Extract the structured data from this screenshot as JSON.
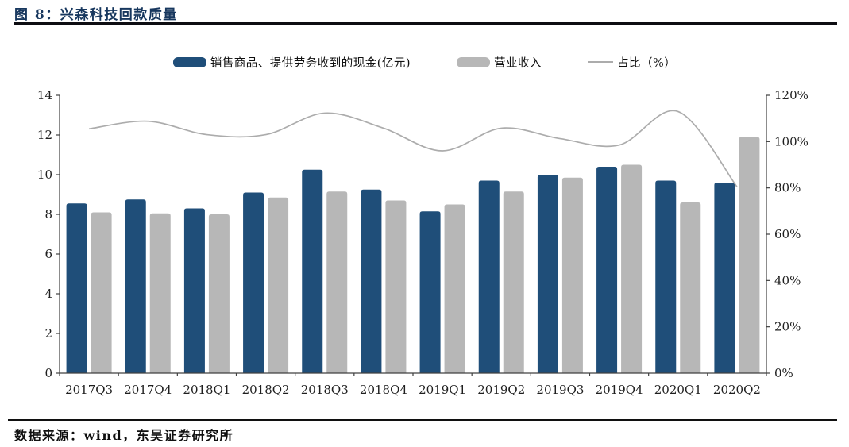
{
  "page": {
    "title": "图 8：兴森科技回款质量",
    "source_note": "数据来源：wind，东吴证券研究所"
  },
  "legend": [
    {
      "label": "销售商品、提供劳务收到的现金(亿元)",
      "swatch": "bar"
    },
    {
      "label": "营业收入",
      "swatch": "bar"
    },
    {
      "label": "占比（%）",
      "swatch": "line"
    }
  ],
  "chart_data": {
    "type": "bar",
    "title": "图 8：兴森科技回款质量",
    "categories": [
      "2017Q3",
      "2017Q4",
      "2018Q1",
      "2018Q2",
      "2018Q3",
      "2018Q4",
      "2019Q1",
      "2019Q2",
      "2019Q3",
      "2019Q4",
      "2020Q1",
      "2020Q2"
    ],
    "series": [
      {
        "name": "销售商品、提供劳务收到的现金(亿元)",
        "type": "bar",
        "axis": "left",
        "color": "#1F4E79",
        "values": [
          8.55,
          8.75,
          8.3,
          9.1,
          10.25,
          9.25,
          8.15,
          9.7,
          10.0,
          10.4,
          9.7,
          9.6
        ]
      },
      {
        "name": "营业收入",
        "type": "bar",
        "axis": "left",
        "color": "#B7B7B7",
        "values": [
          8.1,
          8.05,
          8.0,
          8.85,
          9.15,
          8.7,
          8.5,
          9.15,
          9.85,
          10.5,
          8.6,
          11.9
        ]
      },
      {
        "name": "占比（%）",
        "type": "line",
        "axis": "right",
        "color": "#ACACAC",
        "values": [
          105.5,
          108.8,
          103.0,
          103.0,
          112.3,
          105.8,
          96.0,
          105.8,
          101.3,
          98.5,
          113.0,
          80.5
        ]
      }
    ],
    "left_axis": {
      "min": 0,
      "max": 14,
      "step": 2,
      "ticks": [
        "0",
        "2",
        "4",
        "6",
        "8",
        "10",
        "12",
        "14"
      ]
    },
    "right_axis": {
      "min": 0,
      "max": 120,
      "step": 20,
      "ticks": [
        "0%",
        "20%",
        "40%",
        "60%",
        "80%",
        "100%",
        "120%"
      ]
    },
    "xlabel": "",
    "ylabel": "",
    "grid": false,
    "legend_position": "top",
    "axis_color": "#404040"
  }
}
